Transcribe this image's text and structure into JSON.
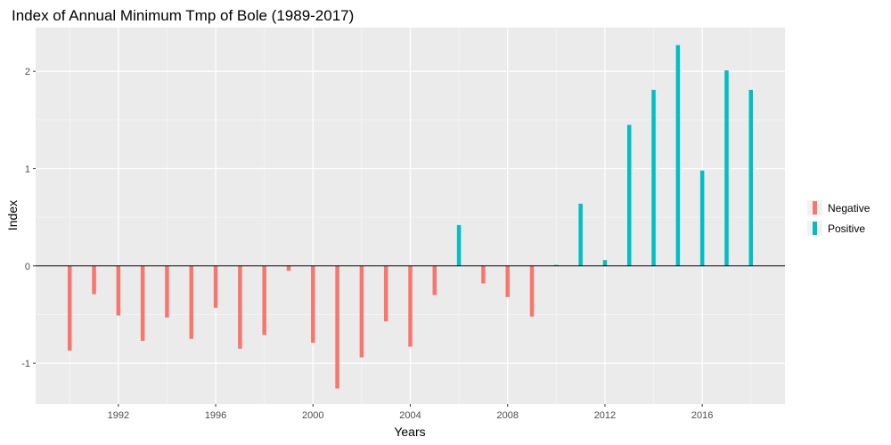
{
  "chart_data": {
    "type": "bar",
    "title": "Index of Annual Minimum Tmp of Bole (1989-2017)",
    "xlabel": "Years",
    "ylabel": "Index",
    "xlim": [
      1988.6,
      2019.4
    ],
    "ylim": [
      -1.42,
      2.45
    ],
    "x_ticks": [
      1992,
      1996,
      2000,
      2004,
      2008,
      2012,
      2016
    ],
    "x_tick_labels": [
      "1992",
      "1996",
      "2000",
      "2004",
      "2008",
      "2012",
      "2016"
    ],
    "y_ticks": [
      -1,
      0,
      1,
      2
    ],
    "y_tick_labels": [
      "-1",
      "0",
      "1",
      "2"
    ],
    "grid": true,
    "legend_position": "right",
    "series": [
      {
        "name": "Negative",
        "color": "#F8766D"
      },
      {
        "name": "Positive",
        "color": "#00BFC4"
      }
    ],
    "x": [
      1990,
      1991,
      1992,
      1993,
      1994,
      1995,
      1996,
      1997,
      1998,
      1999,
      2000,
      2001,
      2002,
      2003,
      2004,
      2005,
      2006,
      2007,
      2008,
      2009,
      2010,
      2011,
      2012,
      2013,
      2014,
      2015,
      2016,
      2017,
      2018
    ],
    "values": [
      -0.87,
      -0.29,
      -0.51,
      -0.77,
      -0.53,
      -0.75,
      -0.43,
      -0.85,
      -0.71,
      -0.05,
      -0.79,
      -1.26,
      -0.94,
      -0.57,
      -0.83,
      -0.3,
      0.42,
      -0.18,
      -0.32,
      -0.52,
      0.01,
      0.64,
      0.06,
      1.45,
      1.81,
      2.27,
      0.98,
      2.01,
      1.81
    ]
  }
}
